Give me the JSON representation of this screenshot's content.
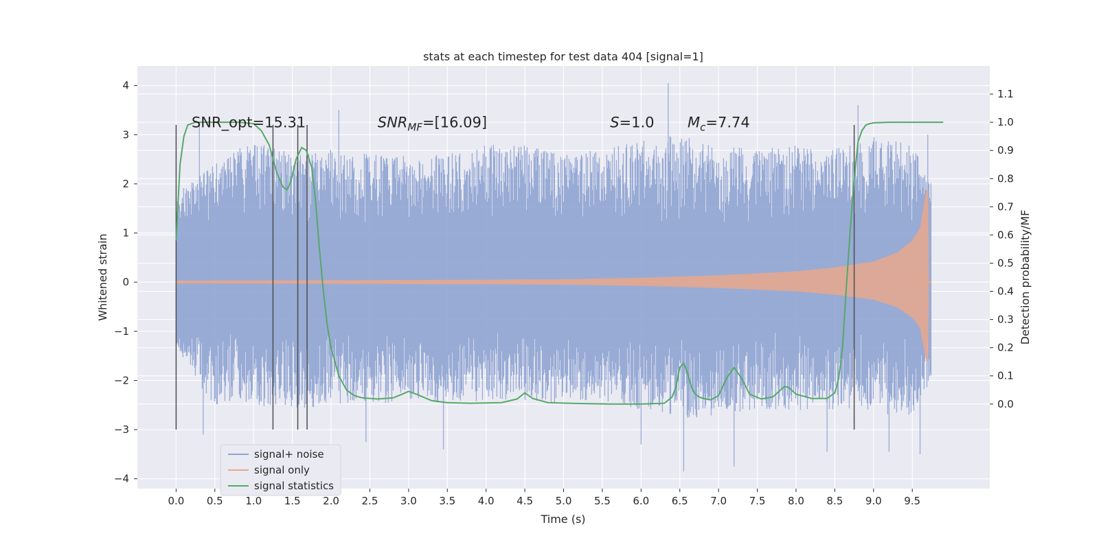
{
  "chart_data": {
    "type": "line",
    "title": "stats at each timestep for test data 404 [signal=1]",
    "xlabel": "Time (s)",
    "ylabel": "Whitened strain",
    "y2label": "Detection probability/MF",
    "xlim": [
      -0.5,
      10.5
    ],
    "ylim": [
      -4.2,
      4.4
    ],
    "y2lim": [
      -0.3,
      1.2
    ],
    "xticks": [
      0.0,
      0.5,
      1.0,
      1.5,
      2.0,
      2.5,
      3.0,
      3.5,
      4.0,
      4.5,
      5.0,
      5.5,
      6.0,
      6.5,
      7.0,
      7.5,
      8.0,
      8.5,
      9.0,
      9.5
    ],
    "xtick_labels": [
      "0.0",
      "0.5",
      "1.0",
      "1.5",
      "2.0",
      "2.5",
      "3.0",
      "3.5",
      "4.0",
      "4.5",
      "5.0",
      "5.5",
      "6.0",
      "6.5",
      "7.0",
      "7.5",
      "8.0",
      "8.5",
      "9.0",
      "9.5"
    ],
    "yticks": [
      -4,
      -3,
      -2,
      -1,
      0,
      1,
      2,
      3,
      4
    ],
    "ytick_labels": [
      "−4",
      "−3",
      "−2",
      "−1",
      "0",
      "1",
      "2",
      "3",
      "4"
    ],
    "y2ticks": [
      0.0,
      0.1,
      0.2,
      0.3,
      0.4,
      0.5,
      0.6,
      0.7,
      0.8,
      0.9,
      1.0,
      1.1
    ],
    "y2tick_labels": [
      "0.0",
      "0.1",
      "0.2",
      "0.3",
      "0.4",
      "0.5",
      "0.6",
      "0.7",
      "0.8",
      "0.9",
      "1.0",
      "1.1"
    ],
    "grid": true,
    "legend": {
      "placement": "lower-left",
      "entries": [
        {
          "label": "signal+ noise",
          "color": "#8fa4d1"
        },
        {
          "label": "signal only",
          "color": "#e7a78c"
        },
        {
          "label": "signal statistics",
          "color": "#55a868"
        }
      ]
    },
    "annotations": [
      {
        "label": "SNR_opt=15.31",
        "x": 0.2,
        "y": 3.15
      },
      {
        "label": "SNR_MF=[16.09]",
        "x": 2.6,
        "y": 3.15
      },
      {
        "label": "S=1.0",
        "x": 5.6,
        "y": 3.15
      },
      {
        "label": "M_c=7.74",
        "x": 6.6,
        "y": 3.15
      }
    ],
    "vlines": {
      "x": [
        0.0,
        1.25,
        1.57,
        1.69,
        8.75
      ],
      "ymin": -3.0,
      "ymax": 3.2,
      "color": "#4d4d4d"
    },
    "series": [
      {
        "name": "signal+ noise",
        "axis": "left",
        "color": "#8fa4d1",
        "x_range": [
          0.0,
          9.75
        ],
        "envelope": {
          "x": [
            0.0,
            0.5,
            1.0,
            1.5,
            2.0,
            2.5,
            3.0,
            3.5,
            4.0,
            4.5,
            5.0,
            5.5,
            6.0,
            6.5,
            7.0,
            7.5,
            8.0,
            8.5,
            9.0,
            9.5,
            9.75
          ],
          "upper": [
            1.8,
            2.4,
            2.9,
            2.6,
            2.7,
            2.6,
            2.6,
            2.6,
            2.8,
            2.8,
            2.6,
            2.7,
            2.9,
            3.0,
            2.8,
            2.7,
            2.8,
            2.7,
            3.0,
            2.8,
            2.0
          ],
          "lower": [
            -1.3,
            -2.6,
            -2.5,
            -2.6,
            -2.5,
            -2.5,
            -2.4,
            -2.5,
            -2.4,
            -2.4,
            -2.5,
            -2.4,
            -2.6,
            -2.8,
            -2.7,
            -2.6,
            -2.6,
            -2.6,
            -2.7,
            -2.7,
            -2.0
          ]
        },
        "peaks": [
          {
            "x": 0.3,
            "y": 3.2
          },
          {
            "x": 2.1,
            "y": 3.5
          },
          {
            "x": 6.35,
            "y": 4.05
          },
          {
            "x": 8.8,
            "y": 3.6
          },
          {
            "x": 9.7,
            "y": 3.0
          },
          {
            "x": 0.35,
            "y": -3.1
          },
          {
            "x": 2.45,
            "y": -3.25
          },
          {
            "x": 3.45,
            "y": -3.4
          },
          {
            "x": 6.0,
            "y": -3.3
          },
          {
            "x": 6.55,
            "y": -3.85
          },
          {
            "x": 7.2,
            "y": -3.75
          },
          {
            "x": 8.4,
            "y": -3.45
          },
          {
            "x": 9.2,
            "y": -3.45
          },
          {
            "x": 9.6,
            "y": -3.5
          }
        ]
      },
      {
        "name": "signal only",
        "axis": "left",
        "color": "#e7a78c",
        "x_range": [
          0.0,
          9.75
        ],
        "envelope": {
          "x": [
            0.0,
            2.0,
            4.0,
            5.0,
            6.0,
            7.0,
            8.0,
            8.5,
            9.0,
            9.3,
            9.5,
            9.6,
            9.65,
            9.68,
            9.7
          ],
          "amplitude": [
            0.03,
            0.04,
            0.05,
            0.06,
            0.09,
            0.14,
            0.22,
            0.3,
            0.42,
            0.6,
            0.85,
            1.1,
            1.6,
            1.85,
            1.9
          ]
        }
      },
      {
        "name": "signal statistics",
        "axis": "right",
        "color": "#55a868",
        "x": [
          0.0,
          0.05,
          0.1,
          0.15,
          0.25,
          0.5,
          0.8,
          1.0,
          1.1,
          1.2,
          1.3,
          1.38,
          1.43,
          1.48,
          1.55,
          1.62,
          1.68,
          1.75,
          1.8,
          1.85,
          1.9,
          1.95,
          2.0,
          2.1,
          2.2,
          2.3,
          2.4,
          2.6,
          2.8,
          2.9,
          3.0,
          3.1,
          3.3,
          3.5,
          3.8,
          4.2,
          4.4,
          4.5,
          4.6,
          4.8,
          5.2,
          5.6,
          6.0,
          6.3,
          6.4,
          6.45,
          6.5,
          6.55,
          6.6,
          6.65,
          6.7,
          6.75,
          6.8,
          6.9,
          7.0,
          7.1,
          7.2,
          7.3,
          7.4,
          7.55,
          7.7,
          7.8,
          7.85,
          7.9,
          8.0,
          8.2,
          8.4,
          8.5,
          8.55,
          8.6,
          8.65,
          8.7,
          8.75,
          8.8,
          8.85,
          8.9,
          8.95,
          9.0,
          9.2,
          9.5,
          9.9
        ],
        "y": [
          0.58,
          0.85,
          0.95,
          0.99,
          1.0,
          1.0,
          1.0,
          0.995,
          0.97,
          0.92,
          0.82,
          0.77,
          0.76,
          0.79,
          0.87,
          0.91,
          0.9,
          0.84,
          0.72,
          0.55,
          0.4,
          0.28,
          0.2,
          0.1,
          0.05,
          0.03,
          0.022,
          0.018,
          0.022,
          0.033,
          0.045,
          0.035,
          0.012,
          0.005,
          0.003,
          0.005,
          0.018,
          0.04,
          0.02,
          0.005,
          0.002,
          0.0,
          0.0,
          0.003,
          0.025,
          0.06,
          0.13,
          0.145,
          0.11,
          0.06,
          0.035,
          0.025,
          0.02,
          0.015,
          0.03,
          0.09,
          0.13,
          0.09,
          0.035,
          0.018,
          0.025,
          0.05,
          0.062,
          0.06,
          0.035,
          0.02,
          0.02,
          0.04,
          0.09,
          0.2,
          0.42,
          0.62,
          0.8,
          0.93,
          0.97,
          0.99,
          0.995,
          0.998,
          1.0,
          1.0,
          1.0
        ]
      }
    ]
  }
}
